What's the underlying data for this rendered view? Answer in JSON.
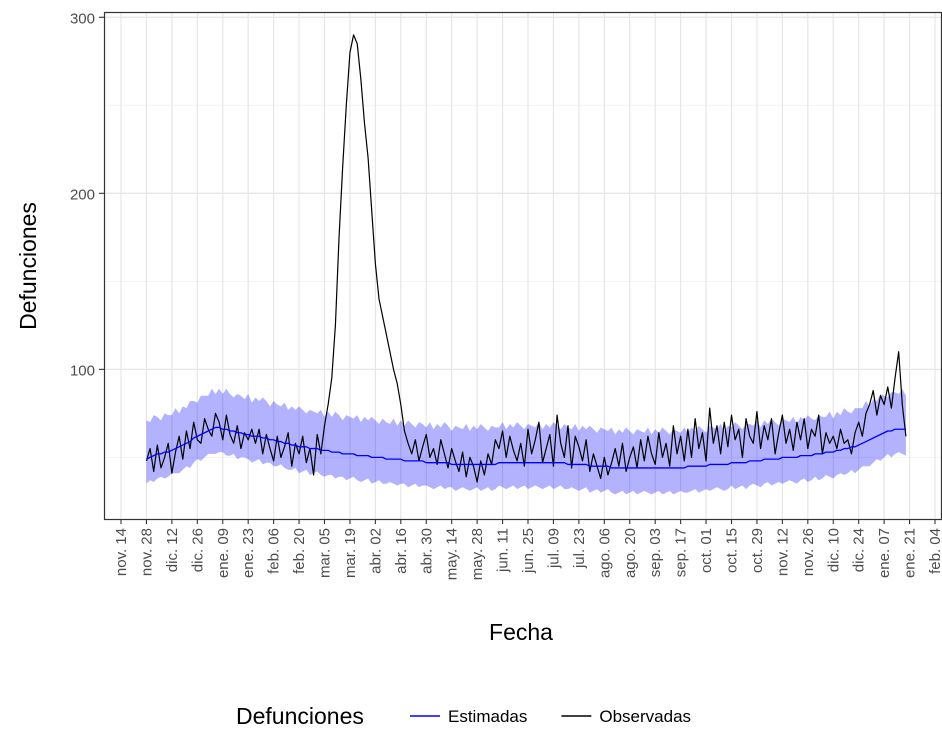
{
  "chart_data": {
    "type": "line",
    "y_label": "Defunciones",
    "x_label": "Fecha",
    "legend_title": "Defunciones",
    "ylim": [
      15,
      303
    ],
    "yticks": [
      100,
      200,
      300
    ],
    "yminor": [
      50,
      150,
      250
    ],
    "grid": true,
    "legend": "bottom",
    "categories": [
      "nov. 14",
      null,
      null,
      null,
      null,
      null,
      null,
      "nov. 28",
      null,
      null,
      null,
      null,
      null,
      null,
      "dic. 12",
      null,
      null,
      null,
      null,
      null,
      null,
      "dic. 26",
      null,
      null,
      null,
      null,
      null,
      null,
      "ene. 09",
      null,
      null,
      null,
      null,
      null,
      null,
      "ene. 23",
      null,
      null,
      null,
      null,
      null,
      null,
      "feb. 06",
      null,
      null,
      null,
      null,
      null,
      null,
      "feb. 20",
      null,
      null,
      null,
      null,
      null,
      null,
      "mar. 05",
      null,
      null,
      null,
      null,
      null,
      null,
      "mar. 19",
      null,
      null,
      null,
      null,
      null,
      null,
      "abr. 02",
      null,
      null,
      null,
      null,
      null,
      null,
      "abr. 16",
      null,
      null,
      null,
      null,
      null,
      null,
      "abr. 30",
      null,
      null,
      null,
      null,
      null,
      null,
      "may. 14",
      null,
      null,
      null,
      null,
      null,
      null,
      "may. 28",
      null,
      null,
      null,
      null,
      null,
      null,
      "jun. 11",
      null,
      null,
      null,
      null,
      null,
      null,
      "jun. 25",
      null,
      null,
      null,
      null,
      null,
      null,
      "jul. 09",
      null,
      null,
      null,
      null,
      null,
      null,
      "jul. 23",
      null,
      null,
      null,
      null,
      null,
      null,
      "ago. 06",
      null,
      null,
      null,
      null,
      null,
      null,
      "ago. 20",
      null,
      null,
      null,
      null,
      null,
      null,
      "sep. 03",
      null,
      null,
      null,
      null,
      null,
      null,
      "sep. 17",
      null,
      null,
      null,
      null,
      null,
      null,
      "oct. 01",
      null,
      null,
      null,
      null,
      null,
      null,
      "oct. 15",
      null,
      null,
      null,
      null,
      null,
      null,
      "oct. 29",
      null,
      null,
      null,
      null,
      null,
      null,
      "nov. 12",
      null,
      null,
      null,
      null,
      null,
      null,
      "nov. 26",
      null,
      null,
      null,
      null,
      null,
      null,
      "dic. 10",
      null,
      null,
      null,
      null,
      null,
      null,
      "dic. 24",
      null,
      null,
      null,
      null,
      null,
      null,
      "ene. 07",
      null,
      null,
      null,
      null,
      null,
      null,
      "ene. 21",
      null,
      null,
      null,
      null,
      null,
      null,
      "feb. 04"
    ],
    "series": [
      {
        "name": "Estimadas",
        "color": "#0000ff",
        "band_color": "#0000ff",
        "values": [
          null,
          null,
          null,
          null,
          null,
          null,
          null,
          49,
          50,
          51,
          52,
          52,
          53,
          53,
          54,
          55,
          56,
          57,
          58,
          59,
          61,
          62,
          63,
          64,
          65,
          66,
          67,
          67,
          66,
          66,
          65,
          65,
          64,
          64,
          63,
          63,
          62,
          62,
          62,
          61,
          61,
          60,
          60,
          59,
          59,
          58,
          58,
          57,
          57,
          56,
          56,
          56,
          55,
          55,
          55,
          54,
          54,
          54,
          53,
          53,
          53,
          52,
          52,
          52,
          52,
          51,
          51,
          51,
          51,
          50,
          50,
          50,
          50,
          49,
          49,
          49,
          49,
          49,
          48,
          48,
          48,
          48,
          48,
          48,
          47,
          47,
          47,
          47,
          47,
          47,
          47,
          46,
          46,
          46,
          46,
          46,
          46,
          46,
          46,
          46,
          46,
          46,
          46,
          46,
          47,
          47,
          47,
          47,
          47,
          47,
          47,
          47,
          47,
          47,
          47,
          47,
          47,
          47,
          47,
          47,
          47,
          47,
          47,
          46,
          46,
          46,
          46,
          46,
          46,
          45,
          45,
          45,
          45,
          45,
          45,
          44,
          44,
          44,
          44,
          44,
          44,
          44,
          44,
          44,
          44,
          44,
          44,
          44,
          44,
          44,
          44,
          44,
          44,
          44,
          44,
          44,
          45,
          45,
          45,
          45,
          45,
          45,
          46,
          46,
          46,
          46,
          46,
          46,
          47,
          47,
          47,
          47,
          47,
          48,
          48,
          48,
          48,
          49,
          49,
          49,
          49,
          49,
          50,
          50,
          50,
          50,
          50,
          51,
          51,
          51,
          51,
          52,
          52,
          52,
          53,
          53,
          53,
          54,
          54,
          55,
          55,
          56,
          56,
          57,
          58,
          59,
          60,
          61,
          62,
          63,
          64,
          65,
          65,
          66,
          66,
          66,
          66,
          null,
          null,
          null,
          null,
          null,
          null,
          null,
          null
        ],
        "upper": [
          null,
          null,
          null,
          null,
          null,
          null,
          null,
          71,
          70,
          74,
          73,
          71,
          75,
          74,
          74,
          78,
          75,
          79,
          78,
          82,
          82,
          81,
          85,
          85,
          85,
          89,
          86,
          89,
          86,
          89,
          86,
          84,
          86,
          85,
          83,
          86,
          81,
          84,
          82,
          84,
          82,
          79,
          82,
          80,
          79,
          81,
          77,
          79,
          77,
          79,
          77,
          75,
          77,
          76,
          75,
          77,
          73,
          76,
          73,
          76,
          74,
          71,
          74,
          73,
          72,
          74,
          70,
          73,
          71,
          73,
          71,
          69,
          72,
          70,
          69,
          72,
          68,
          71,
          68,
          71,
          69,
          67,
          70,
          69,
          67,
          70,
          66,
          69,
          67,
          70,
          68,
          65,
          68,
          67,
          66,
          69,
          65,
          68,
          66,
          69,
          67,
          65,
          68,
          67,
          67,
          70,
          66,
          69,
          67,
          70,
          68,
          66,
          69,
          68,
          67,
          70,
          66,
          69,
          67,
          70,
          68,
          66,
          69,
          67,
          66,
          69,
          65,
          68,
          66,
          68,
          66,
          64,
          67,
          66,
          65,
          67,
          63,
          66,
          64,
          67,
          65,
          63,
          66,
          65,
          64,
          67,
          63,
          66,
          64,
          67,
          65,
          63,
          66,
          65,
          64,
          67,
          64,
          67,
          65,
          68,
          66,
          64,
          68,
          67,
          66,
          69,
          65,
          68,
          67,
          70,
          68,
          66,
          69,
          69,
          68,
          71,
          67,
          71,
          69,
          72,
          70,
          68,
          72,
          71,
          70,
          73,
          69,
          73,
          71,
          74,
          72,
          71,
          74,
          73,
          73,
          76,
          72,
          76,
          74,
          78,
          76,
          75,
          78,
          78,
          78,
          82,
          79,
          83,
          82,
          86,
          85,
          84,
          87,
          87,
          86,
          89,
          85,
          null,
          null,
          null,
          null,
          null,
          null,
          null,
          null
        ],
        "lower": [
          null,
          null,
          null,
          null,
          null,
          null,
          null,
          35,
          37,
          36,
          38,
          39,
          38,
          39,
          41,
          41,
          41,
          43,
          45,
          44,
          47,
          49,
          48,
          50,
          52,
          52,
          52,
          53,
          53,
          51,
          51,
          52,
          49,
          50,
          50,
          49,
          47,
          48,
          49,
          46,
          47,
          47,
          45,
          45,
          46,
          44,
          43,
          43,
          44,
          41,
          42,
          43,
          40,
          41,
          42,
          40,
          39,
          40,
          40,
          38,
          39,
          39,
          37,
          38,
          39,
          37,
          36,
          37,
          38,
          35,
          36,
          37,
          35,
          35,
          36,
          35,
          34,
          35,
          35,
          33,
          34,
          35,
          33,
          34,
          34,
          33,
          32,
          33,
          34,
          32,
          33,
          33,
          31,
          32,
          33,
          32,
          31,
          32,
          33,
          31,
          32,
          33,
          31,
          32,
          34,
          33,
          32,
          33,
          34,
          32,
          33,
          34,
          32,
          33,
          34,
          33,
          32,
          33,
          34,
          32,
          33,
          34,
          32,
          32,
          33,
          32,
          31,
          32,
          33,
          30,
          31,
          32,
          30,
          31,
          32,
          30,
          29,
          30,
          31,
          29,
          30,
          31,
          29,
          30,
          31,
          30,
          29,
          30,
          31,
          29,
          30,
          31,
          29,
          30,
          31,
          30,
          30,
          31,
          32,
          30,
          31,
          32,
          31,
          32,
          33,
          32,
          31,
          32,
          34,
          32,
          33,
          34,
          32,
          34,
          35,
          34,
          33,
          35,
          36,
          34,
          35,
          36,
          35,
          36,
          37,
          36,
          35,
          37,
          38,
          36,
          37,
          39,
          37,
          38,
          40,
          39,
          38,
          40,
          41,
          40,
          41,
          43,
          41,
          43,
          45,
          45,
          45,
          47,
          49,
          48,
          50,
          52,
          50,
          52,
          53,
          52,
          51,
          null,
          null,
          null,
          null,
          null,
          null,
          null,
          null
        ]
      },
      {
        "name": "Observadas",
        "color": "#000000",
        "values": [
          null,
          null,
          null,
          null,
          null,
          null,
          null,
          48,
          55,
          42,
          57,
          44,
          50,
          58,
          41,
          53,
          62,
          49,
          65,
          55,
          70,
          60,
          58,
          72,
          66,
          62,
          75,
          70,
          60,
          74,
          63,
          58,
          68,
          55,
          64,
          60,
          66,
          58,
          66,
          52,
          63,
          55,
          48,
          62,
          50,
          56,
          64,
          45,
          58,
          52,
          62,
          47,
          55,
          40,
          63,
          52,
          68,
          80,
          95,
          125,
          175,
          215,
          250,
          280,
          290,
          285,
          265,
          240,
          220,
          190,
          160,
          140,
          130,
          120,
          110,
          100,
          92,
          80,
          65,
          58,
          52,
          60,
          48,
          56,
          63,
          50,
          55,
          46,
          60,
          52,
          44,
          55,
          48,
          42,
          53,
          39,
          50,
          45,
          36,
          48,
          40,
          52,
          46,
          60,
          55,
          65,
          50,
          62,
          54,
          48,
          58,
          45,
          66,
          52,
          60,
          70,
          47,
          55,
          63,
          45,
          74,
          58,
          50,
          68,
          44,
          62,
          56,
          48,
          60,
          42,
          52,
          45,
          38,
          50,
          40,
          47,
          55,
          45,
          58,
          42,
          50,
          56,
          44,
          60,
          48,
          62,
          52,
          46,
          64,
          50,
          58,
          45,
          68,
          52,
          62,
          48,
          66,
          50,
          72,
          55,
          64,
          48,
          78,
          58,
          68,
          52,
          70,
          56,
          74,
          60,
          66,
          50,
          72,
          62,
          58,
          76,
          55,
          68,
          60,
          72,
          52,
          64,
          74,
          58,
          66,
          54,
          70,
          60,
          72,
          55,
          66,
          62,
          74,
          52,
          64,
          58,
          62,
          55,
          66,
          58,
          60,
          52,
          64,
          70,
          62,
          75,
          80,
          88,
          74,
          85,
          80,
          90,
          78,
          95,
          110,
          80,
          62,
          null,
          null,
          null,
          null,
          null,
          null,
          null,
          null
        ]
      }
    ]
  }
}
